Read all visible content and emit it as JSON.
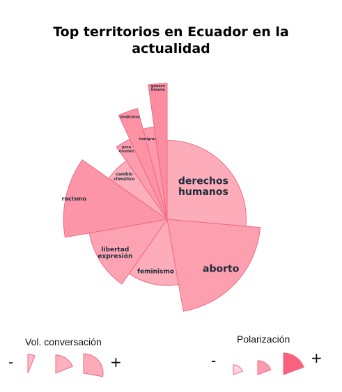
{
  "title_line1": "Top territorios en Ecuador en la",
  "title_line2": "actualidad",
  "chart_data": {
    "type": "polar-area",
    "encoding": {
      "radius": "Vol. conversación",
      "color_intensity": "Polarización"
    },
    "colors": {
      "low": "#fdb5c1",
      "high": "#fb7a91",
      "stroke": "#f06a82"
    },
    "sectors": [
      {
        "name": "derechos humanos",
        "angle_deg": 95,
        "volume": 0.93,
        "polarization": 0.15
      },
      {
        "name": "aborto",
        "angle_deg": 75,
        "volume": 1.1,
        "polarization": 0.35
      },
      {
        "name": "feminismo",
        "angle_deg": 45,
        "volume": 0.78,
        "polarization": 0.15
      },
      {
        "name": "libertad expresión",
        "angle_deg": 45,
        "volume": 0.93,
        "polarization": 0.3
      },
      {
        "name": "racismo",
        "angle_deg": 45,
        "volume": 1.22,
        "polarization": 0.55
      },
      {
        "name": "cambio climático",
        "angle_deg": 20,
        "volume": 0.84,
        "polarization": 0.1
      },
      {
        "name": "poca escasez",
        "angle_deg": 10,
        "volume": 1.04,
        "polarization": 0.4
      },
      {
        "name": "sindicatos",
        "angle_deg": 10,
        "volume": 1.35,
        "polarization": 0.6
      },
      {
        "name": "inmigración",
        "angle_deg": 7,
        "volume": 1.1,
        "polarization": 0.45
      },
      {
        "name": "género binario",
        "angle_deg": 8,
        "volume": 1.6,
        "polarization": 0.7
      }
    ]
  },
  "legend": {
    "volume": {
      "title": "Vol. conversación",
      "minus": "-",
      "plus": "+"
    },
    "polarization": {
      "title": "Polarización",
      "minus": "-",
      "plus": "+"
    }
  }
}
